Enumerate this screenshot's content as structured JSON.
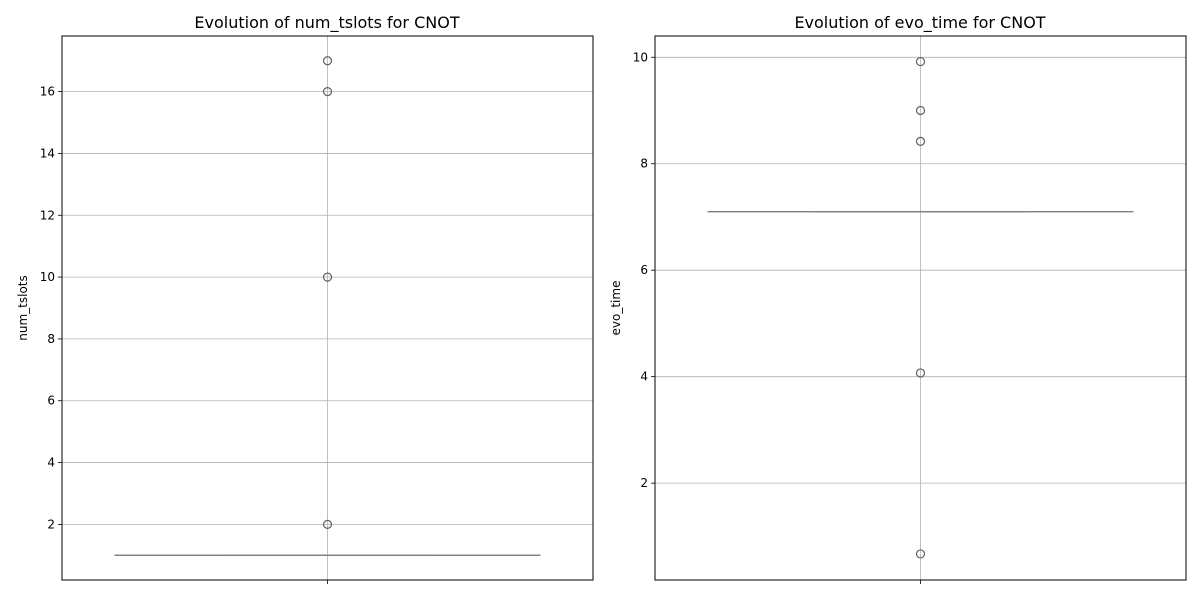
{
  "chart_data": [
    {
      "type": "box",
      "title": "Evolution of num_tslots for CNOT",
      "xlabel": "",
      "ylabel": "num_tslots",
      "ylim": [
        0.2,
        17.8
      ],
      "yticks": [
        2,
        4,
        6,
        8,
        10,
        12,
        14,
        16
      ],
      "grid": true,
      "box": {
        "whisker_low": 1,
        "q1": 1,
        "median": 1,
        "q3": 1,
        "whisker_high": 1
      },
      "outliers": [
        2,
        10,
        16,
        17
      ]
    },
    {
      "type": "box",
      "title": "Evolution of evo_time for CNOT",
      "xlabel": "",
      "ylabel": "evo_time",
      "ylim": [
        0.18,
        10.4
      ],
      "yticks": [
        2,
        4,
        6,
        8,
        10
      ],
      "grid": true,
      "box": {
        "whisker_low": 7.1,
        "q1": 7.1,
        "median": 7.1,
        "q3": 7.1,
        "whisker_high": 7.1
      },
      "outliers": [
        0.67,
        4.07,
        8.42,
        9.0,
        9.92
      ]
    }
  ],
  "colors": {
    "grid": "#b0b0b0",
    "box": "#808080",
    "outlier": "#606060",
    "frame": "#000000"
  }
}
